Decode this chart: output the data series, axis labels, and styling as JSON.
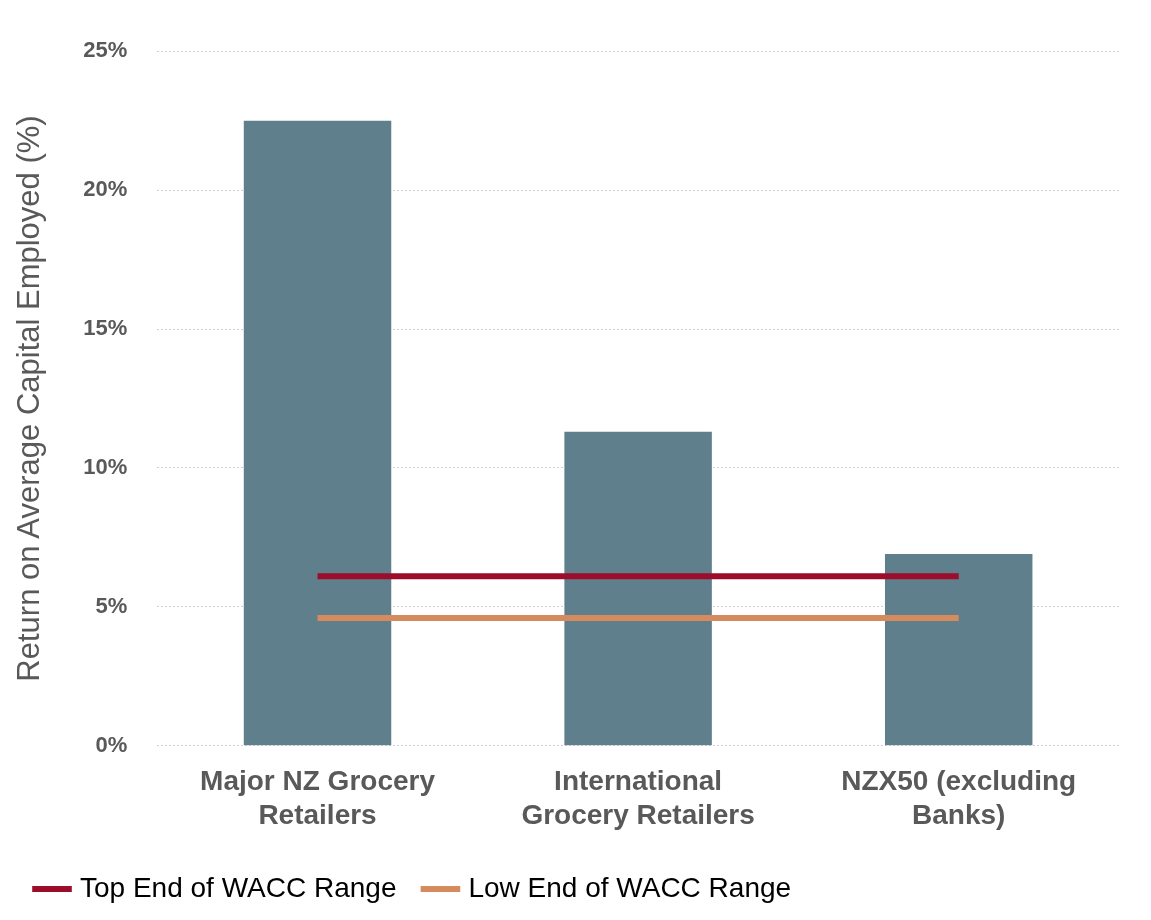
{
  "chart_data": {
    "type": "bar",
    "ylabel": "Return on Average Capital Employed (%)",
    "categories": [
      "Major NZ Grocery Retailers",
      "International Grocery Retailers",
      "NZX50 (excluding Banks)"
    ],
    "series": [
      {
        "color": "#607f8c",
        "values": [
          22.5,
          11.3,
          6.9
        ]
      },
      {
        "type": "line",
        "name": "Top End of WACC Range",
        "color": "#9b0d2a",
        "values": [
          6.1,
          6.1,
          6.1
        ]
      },
      {
        "type": "line",
        "name": "Low End of WACC Range",
        "color": "#d68b5e",
        "values": [
          4.6,
          4.6,
          4.6
        ]
      }
    ],
    "ylim": [
      0,
      25
    ],
    "yticks": [
      {
        "value": 0,
        "label": "0%"
      },
      {
        "value": 5,
        "label": "5%"
      },
      {
        "value": 10,
        "label": "10%"
      },
      {
        "value": 15,
        "label": "15%"
      },
      {
        "value": 20,
        "label": "20%"
      },
      {
        "value": 25,
        "label": "25%"
      }
    ],
    "grid": "y",
    "legend": "bottom",
    "marker": "none",
    "line_style": "solid"
  }
}
